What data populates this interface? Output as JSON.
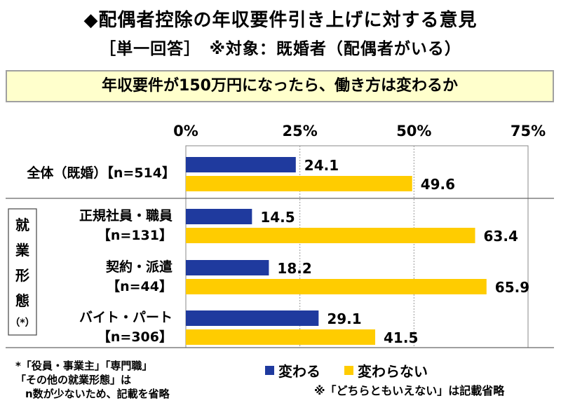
{
  "title": "◆配偶者控除の年収要件引き上げに対する意見",
  "subtitle": "［単一回答］　※対象：既婚者（配偶者がいる）",
  "question": "年収要件が150万円になったら、働き方は変わるか",
  "group_label_chars": [
    "就",
    "業",
    "形",
    "態"
  ],
  "group_label_note": "（*）",
  "footnote_lines": [
    "*「役員・事業主」「専門職」",
    "「その他の就業形態」は",
    "n数が少ないため、記載を省略"
  ],
  "omit_note": "※「どちらともいえない」は記載省略",
  "colors": {
    "series1": "#1f3a9e",
    "series2": "#ffcc00",
    "question_bg": "#ffffcc"
  },
  "chart_data": {
    "type": "bar",
    "orientation": "horizontal",
    "categories": [
      [
        "全体（既婚）【n=514】"
      ],
      [
        "正規社員・職員",
        "【n=131】"
      ],
      [
        "契約・派遣",
        "【n=44】"
      ],
      [
        "バイト・パート",
        "【n=306】"
      ]
    ],
    "series": [
      {
        "name": "変わる",
        "values": [
          24.1,
          14.5,
          18.2,
          29.1
        ]
      },
      {
        "name": "変わらない",
        "values": [
          49.6,
          63.4,
          65.9,
          41.5
        ]
      }
    ],
    "xlim": [
      0,
      75
    ],
    "xticks": [
      0,
      25,
      50,
      75
    ],
    "xtick_labels": [
      "0%",
      "25%",
      "50%",
      "75%"
    ],
    "grid": true,
    "legend_position": "bottom"
  }
}
